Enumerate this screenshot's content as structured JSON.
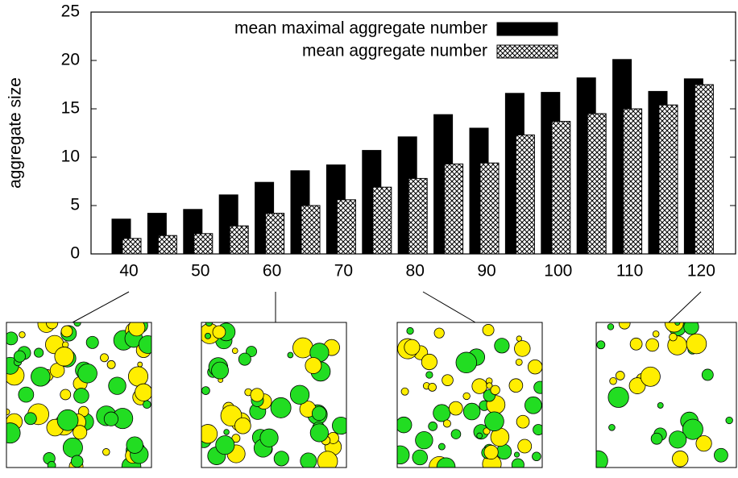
{
  "chart_data": {
    "type": "bar",
    "y_label": "aggregate size",
    "categories": [
      "40",
      null,
      "50",
      null,
      "60",
      null,
      "70",
      null,
      "80",
      null,
      "90",
      null,
      "100",
      null,
      "110",
      null,
      "120"
    ],
    "series": [
      {
        "name": "mean maximal aggregate number",
        "color": "#000000",
        "values": [
          3.6,
          4.2,
          4.6,
          6.1,
          7.4,
          8.6,
          9.2,
          10.7,
          12.1,
          14.4,
          13.0,
          16.6,
          16.7,
          18.2,
          20.1,
          16.8,
          18.1
        ]
      },
      {
        "name": "mean aggregate number",
        "color": "crosshatch",
        "values": [
          1.6,
          1.9,
          2.1,
          2.9,
          4.2,
          5.0,
          5.6,
          6.9,
          7.8,
          9.3,
          9.4,
          12.3,
          13.7,
          14.5,
          15.0,
          15.4,
          17.5
        ]
      }
    ],
    "ylim": [
      0,
      25
    ],
    "yticks": [
      0,
      5,
      10,
      15,
      20,
      25
    ],
    "legend": "top"
  }
}
